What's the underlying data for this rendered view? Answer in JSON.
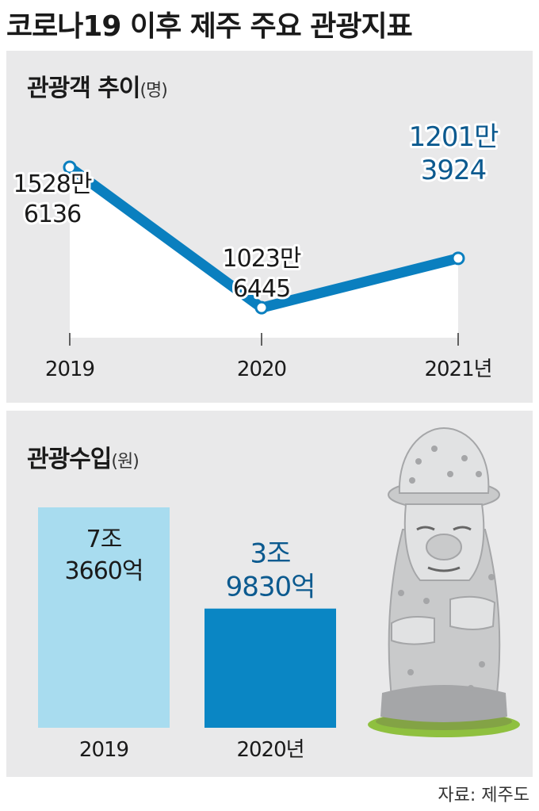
{
  "title": "코로나19 이후 제주 주요 관광지표",
  "source": "자료: 제주도",
  "colors": {
    "panel_bg": "#e9e9ea",
    "line": "#0a7fbf",
    "bar_2019": "#a8dcef",
    "bar_2020": "#0a86c4",
    "label_dark": "#1a1a1a",
    "label_blue": "#0c5a8f"
  },
  "chart_data": [
    {
      "type": "line",
      "title": "관광객 추이",
      "unit": "(명)",
      "categories": [
        "2019",
        "2020",
        "2021년"
      ],
      "values": [
        15286136,
        10236445,
        12013924
      ],
      "data_labels": [
        [
          "1528만",
          "6136"
        ],
        [
          "1023만",
          "6445"
        ],
        [
          "1201만",
          "3924"
        ]
      ],
      "ylim": [
        0,
        16000000
      ]
    },
    {
      "type": "bar",
      "title": "관광수입",
      "unit": "(원)",
      "categories": [
        "2019",
        "2020년"
      ],
      "values": [
        73660,
        39830
      ],
      "data_labels": [
        [
          "7조",
          "3660억"
        ],
        [
          "3조",
          "9830억"
        ]
      ],
      "ylim": [
        0,
        73660
      ]
    }
  ],
  "illustration": "dol-hareubang-statue"
}
